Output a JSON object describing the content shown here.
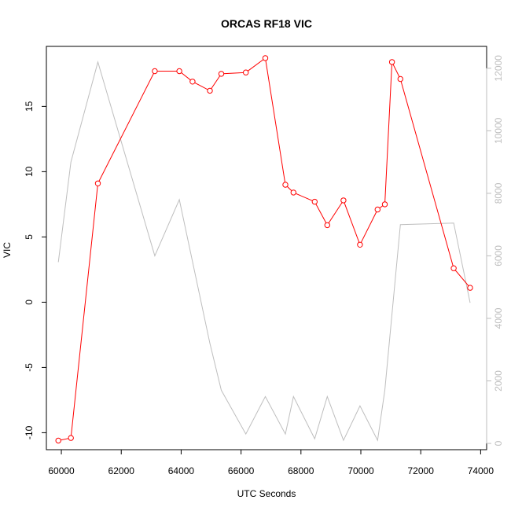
{
  "chart_data": {
    "type": "line",
    "title": "ORCAS RF18 VIC",
    "xlabel": "UTC Seconds",
    "ylabel": "VIC",
    "xlim": [
      59500,
      74200
    ],
    "ylim": [
      -11.3,
      19.6
    ],
    "ylim_right": [
      -200,
      12700
    ],
    "x_ticks": [
      60000,
      62000,
      64000,
      66000,
      68000,
      70000,
      72000,
      74000
    ],
    "x_tick_labels": [
      "60000",
      "62000",
      "64000",
      "66000",
      "68000",
      "70000",
      "72000",
      "74000"
    ],
    "y_ticks": [
      -10,
      -5,
      0,
      5,
      10,
      15
    ],
    "y_tick_labels": [
      "-10",
      "-5",
      "0",
      "5",
      "10",
      "15"
    ],
    "y_right_ticks": [
      0,
      2000,
      4000,
      6000,
      8000,
      10000,
      12000
    ],
    "y_right_tick_labels": [
      "0",
      "2000",
      "4000",
      "6000",
      "8000",
      "10000",
      "12000"
    ],
    "series": [
      {
        "color": "#ff0000",
        "axis": "left",
        "markers": "open-circle",
        "x": [
          59900,
          60320,
          61220,
          63120,
          63940,
          64380,
          64960,
          65340,
          66160,
          66810,
          67480,
          67750,
          68460,
          68880,
          69420,
          69970,
          70560,
          70800,
          71040,
          71320,
          73100,
          73650
        ],
        "y": [
          -10.6,
          -10.4,
          9.1,
          17.7,
          17.7,
          16.9,
          16.2,
          17.5,
          17.6,
          18.7,
          9.0,
          8.4,
          7.7,
          5.9,
          7.8,
          4.4,
          7.1,
          7.5,
          18.4,
          17.1,
          2.6,
          1.1
        ]
      },
      {
        "color": "#bebebe",
        "axis": "right",
        "markers": "none",
        "x": [
          59900,
          60320,
          61220,
          63120,
          63940,
          64960,
          65340,
          66160,
          66810,
          67480,
          67750,
          68460,
          68880,
          69420,
          69970,
          70560,
          70800,
          71320,
          73100,
          73650
        ],
        "y": [
          5800,
          9000,
          12200,
          6000,
          7800,
          3200,
          1700,
          300,
          1500,
          300,
          1500,
          150,
          1500,
          100,
          1200,
          100,
          1700,
          7000,
          7050,
          4500
        ]
      }
    ]
  }
}
